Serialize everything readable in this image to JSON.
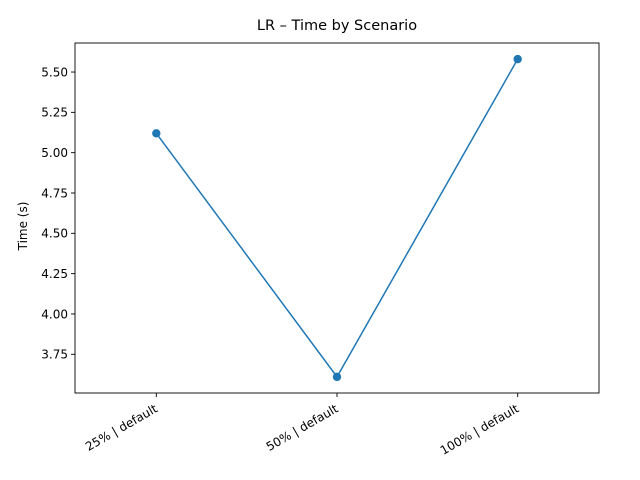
{
  "chart_data": {
    "type": "line",
    "title": "LR – Time by Scenario",
    "xlabel": "",
    "ylabel": "Time (s)",
    "categories": [
      "25% | default",
      "50% | default",
      "100% | default"
    ],
    "series": [
      {
        "values": [
          5.12,
          3.61,
          5.58
        ],
        "color": "#1f77b4",
        "marker": "circle"
      }
    ],
    "ylim": [
      3.51,
      5.68
    ],
    "yticks": [
      "3.75",
      "4.00",
      "4.25",
      "4.50",
      "4.75",
      "5.00",
      "5.25",
      "5.50"
    ],
    "grid": false,
    "legend": "none"
  }
}
